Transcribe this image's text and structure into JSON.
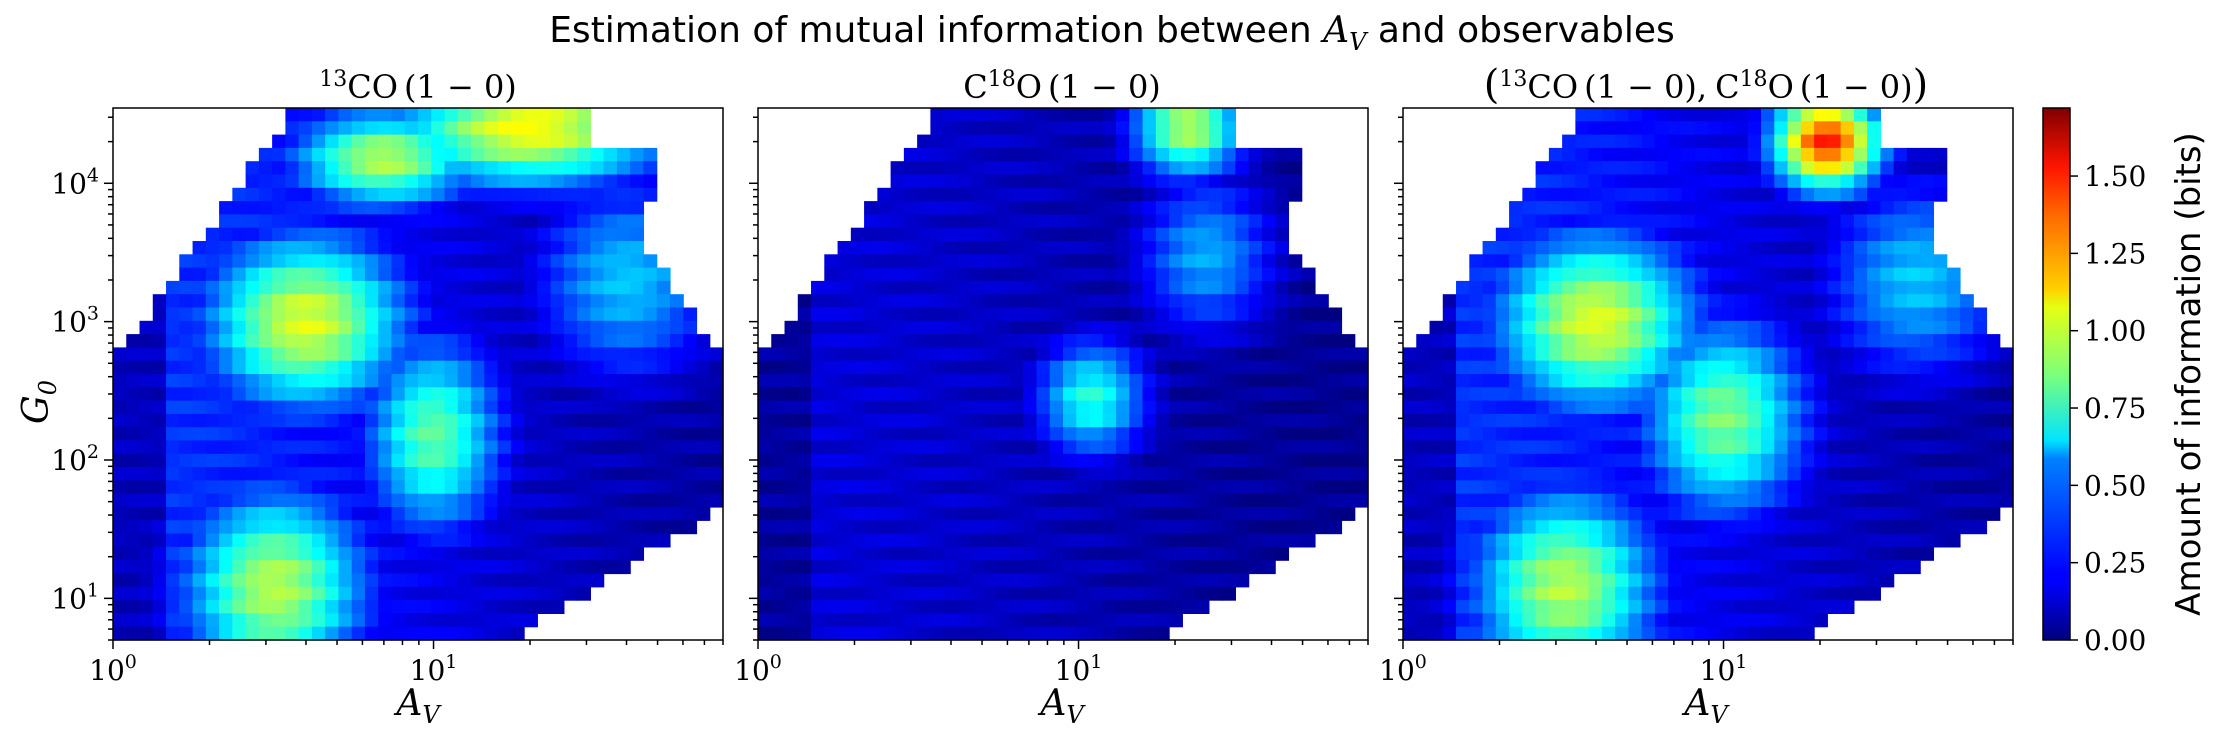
{
  "figure": {
    "title_plain": "Estimation of mutual information between ",
    "title_math": "A",
    "title_math_sub": "V",
    "title_tail": " and observables"
  },
  "colorbar": {
    "label": "Amount of information (bits)",
    "colormap": "jet",
    "range": [
      0.0,
      1.72
    ],
    "ticks": [
      "0.00",
      "0.25",
      "0.50",
      "0.75",
      "1.00",
      "1.25",
      "1.50"
    ]
  },
  "chart_data": [
    {
      "type": "heatmap",
      "title": "13CO (1 − 0)",
      "xlabel": "A_V",
      "ylabel": "G_0",
      "x_scale": "log",
      "y_scale": "log",
      "xlim": [
        1,
        80
      ],
      "ylim": [
        5,
        35000
      ],
      "x_ticks": [
        "10^0",
        "10^1"
      ],
      "y_ticks": [
        "10^1",
        "10^2",
        "10^3",
        "10^4"
      ],
      "grid": false,
      "hotspots": [
        {
          "A_V": 4.0,
          "G0": 1000,
          "bits": 1.02,
          "spread_x": 0.22,
          "spread_y": 0.45
        },
        {
          "A_V": 3.2,
          "G0": 12,
          "bits": 0.95,
          "spread_x": 0.2,
          "spread_y": 0.5
        },
        {
          "A_V": 20,
          "G0": 25000,
          "bits": 1.08,
          "spread_x": 0.3,
          "spread_y": 0.3
        },
        {
          "A_V": 7,
          "G0": 15000,
          "bits": 0.95,
          "spread_x": 0.2,
          "spread_y": 0.25
        },
        {
          "A_V": 10,
          "G0": 150,
          "bits": 0.8,
          "spread_x": 0.15,
          "spread_y": 0.5
        },
        {
          "A_V": 40,
          "G0": 2000,
          "bits": 0.55,
          "spread_x": 0.2,
          "spread_y": 0.5
        }
      ],
      "background_bits": 0.3
    },
    {
      "type": "heatmap",
      "title": "C18O (1 − 0)",
      "xlabel": "A_V",
      "x_scale": "log",
      "y_scale": "log",
      "xlim": [
        1,
        80
      ],
      "ylim": [
        5,
        35000
      ],
      "x_ticks": [
        "10^0",
        "10^1"
      ],
      "grid": false,
      "hotspots": [
        {
          "A_V": 11,
          "G0": 280,
          "bits": 0.7,
          "spread_x": 0.12,
          "spread_y": 0.3
        },
        {
          "A_V": 22,
          "G0": 25000,
          "bits": 0.95,
          "spread_x": 0.12,
          "spread_y": 0.25
        },
        {
          "A_V": 25,
          "G0": 3000,
          "bits": 0.5,
          "spread_x": 0.15,
          "spread_y": 0.4
        }
      ],
      "background_bits": 0.15
    },
    {
      "type": "heatmap",
      "title": "(13CO (1 − 0), C18O (1 − 0))",
      "xlabel": "A_V",
      "x_scale": "log",
      "y_scale": "log",
      "xlim": [
        1,
        80
      ],
      "ylim": [
        5,
        35000
      ],
      "x_ticks": [
        "10^0",
        "10^1"
      ],
      "grid": false,
      "hotspots": [
        {
          "A_V": 4.0,
          "G0": 1000,
          "bits": 1.02,
          "spread_x": 0.22,
          "spread_y": 0.45
        },
        {
          "A_V": 3.2,
          "G0": 12,
          "bits": 0.95,
          "spread_x": 0.2,
          "spread_y": 0.5
        },
        {
          "A_V": 21,
          "G0": 20000,
          "bits": 1.45,
          "spread_x": 0.12,
          "spread_y": 0.25
        },
        {
          "A_V": 10,
          "G0": 200,
          "bits": 0.85,
          "spread_x": 0.18,
          "spread_y": 0.5
        },
        {
          "A_V": 40,
          "G0": 2000,
          "bits": 0.55,
          "spread_x": 0.2,
          "spread_y": 0.5
        }
      ],
      "background_bits": 0.3
    }
  ],
  "panel_titles": [
    {
      "sup": "13",
      "main": "CO",
      "tail": "(1 − 0)"
    },
    {
      "pre": "C",
      "sup": "18",
      "main": "O",
      "tail": "(1 − 0)"
    },
    {
      "open": "(",
      "sup1": "13",
      "main1": "CO",
      "tail1": "(1 − 0),",
      "pre2": "C",
      "sup2": "18",
      "main2": "O",
      "tail2": "(1 − 0)",
      "close": ")"
    }
  ],
  "axis_labels": {
    "x": {
      "main": "A",
      "sub": "V"
    },
    "y": {
      "main": "G",
      "sub": "0"
    }
  },
  "tick_labels": {
    "x": [
      {
        "base": "10",
        "exp": "0"
      },
      {
        "base": "10",
        "exp": "1"
      }
    ],
    "y": [
      {
        "base": "10",
        "exp": "1"
      },
      {
        "base": "10",
        "exp": "2"
      },
      {
        "base": "10",
        "exp": "3"
      },
      {
        "base": "10",
        "exp": "4"
      }
    ]
  }
}
